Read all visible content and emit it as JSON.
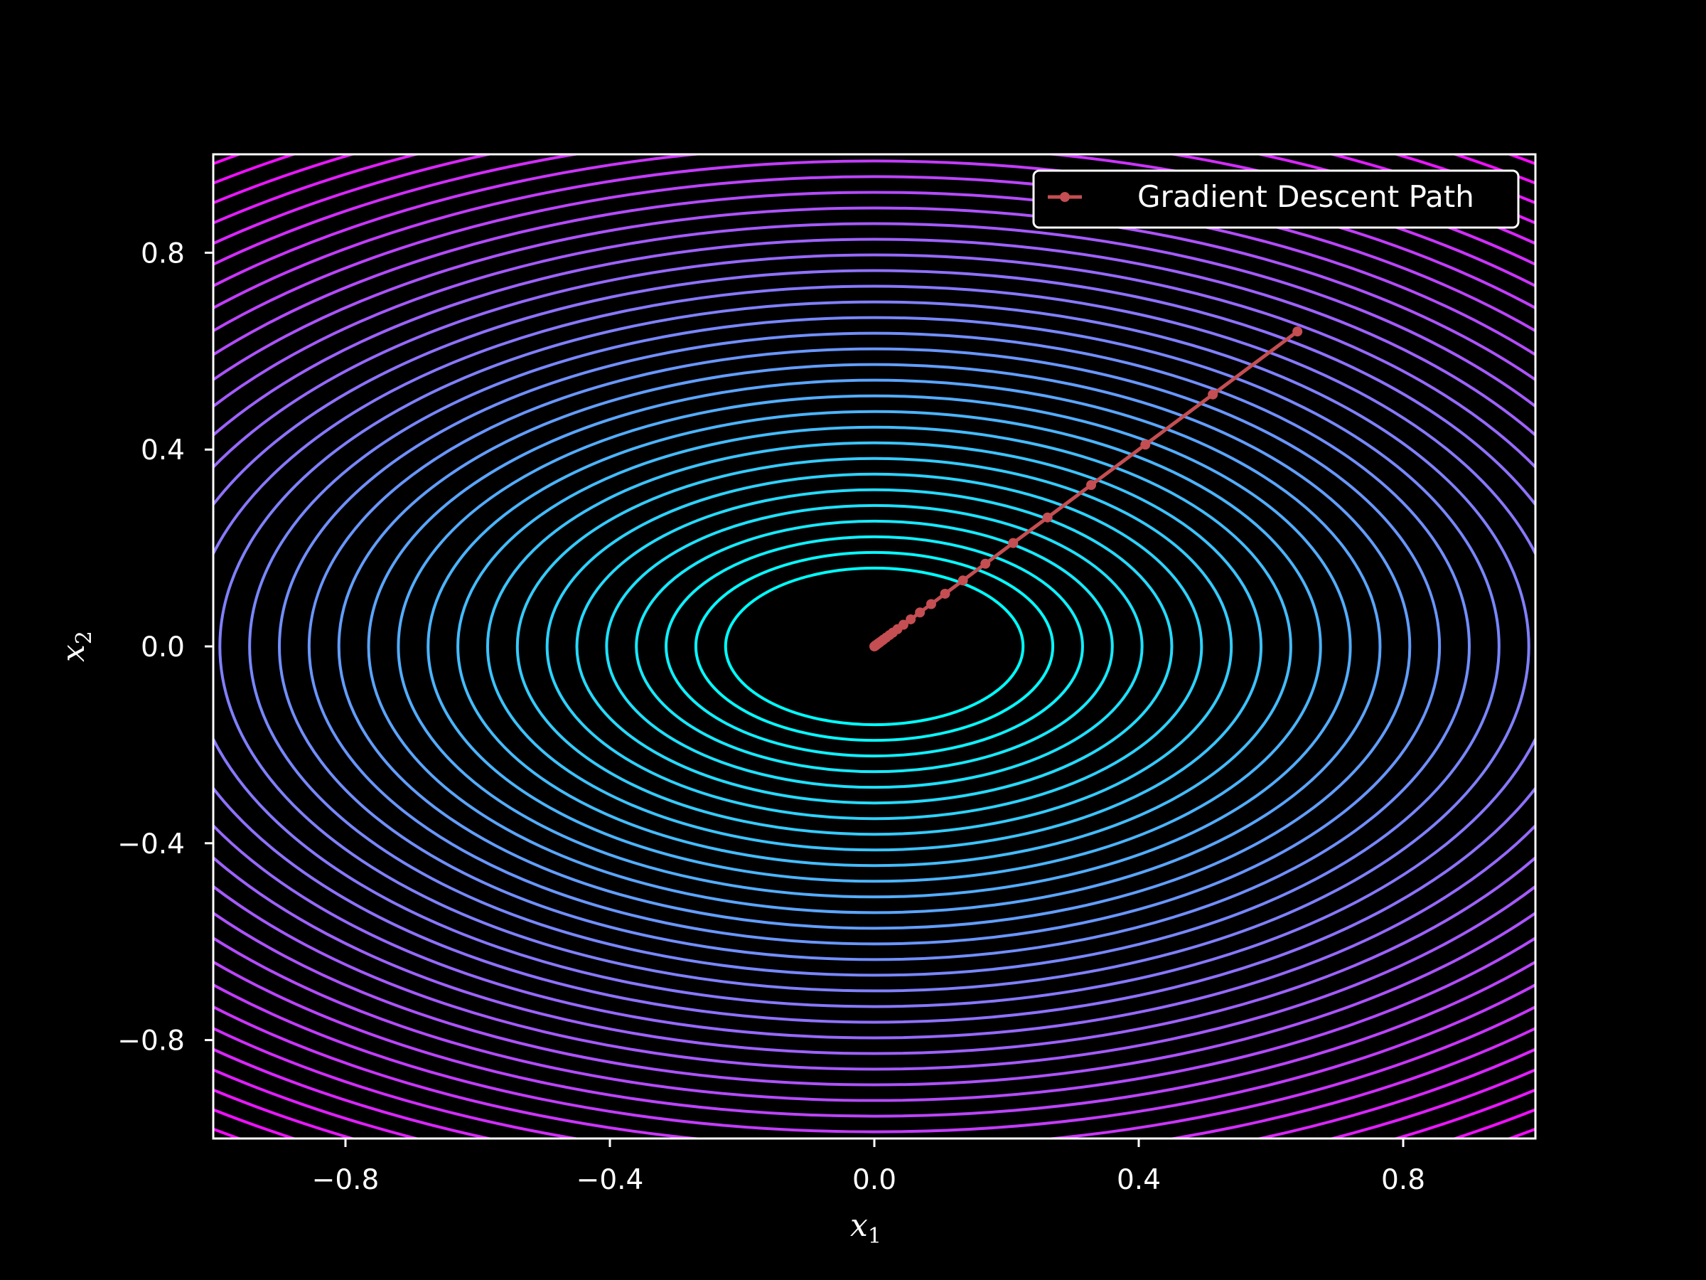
{
  "chart_data": {
    "type": "contour",
    "title": "",
    "xlabel": {
      "base": "x",
      "sub": "1"
    },
    "ylabel": {
      "base": "x",
      "sub": "2"
    },
    "xlim": [
      -1,
      1
    ],
    "ylim": [
      -1,
      1
    ],
    "x_ticks": [
      -0.8,
      -0.4,
      0.0,
      0.4,
      0.8
    ],
    "x_tick_labels": [
      "−0.8",
      "−0.4",
      "0.0",
      "0.4",
      "0.8"
    ],
    "y_ticks": [
      -0.8,
      -0.4,
      0.0,
      0.4,
      0.8
    ],
    "y_tick_labels": [
      "−0.8",
      "−0.4",
      "0.0",
      "0.4",
      "0.8"
    ],
    "grid": false,
    "legend_position": "top-right",
    "contour": {
      "function": "x1^2 + 2*x2^2",
      "minimum": [
        0,
        0
      ],
      "colormap": [
        "#00ffff",
        "#ff00ff"
      ],
      "levels_sqrt_start": 0.225,
      "levels_sqrt_step": 0.045,
      "levels_sqrt_end": 1.74
    },
    "series": [
      {
        "name": "Gradient Descent Path",
        "color": "#c44e52",
        "marker": "circle",
        "x": [
          0.64,
          0.512,
          0.41,
          0.328,
          0.262,
          0.21,
          0.168,
          0.134,
          0.107,
          0.086,
          0.069,
          0.055,
          0.044,
          0.035,
          0.028,
          0.023,
          0.018,
          0.014,
          0.012,
          0.009,
          0.007,
          0.006,
          0.005,
          0.004,
          0.003,
          0.002,
          0.002,
          0.001,
          0.001,
          0.001,
          0.0
        ],
        "y": [
          0.64,
          0.512,
          0.41,
          0.328,
          0.262,
          0.21,
          0.168,
          0.134,
          0.107,
          0.086,
          0.069,
          0.055,
          0.044,
          0.035,
          0.028,
          0.023,
          0.018,
          0.014,
          0.012,
          0.009,
          0.007,
          0.006,
          0.005,
          0.004,
          0.003,
          0.002,
          0.002,
          0.001,
          0.001,
          0.001,
          0.0
        ]
      }
    ]
  }
}
